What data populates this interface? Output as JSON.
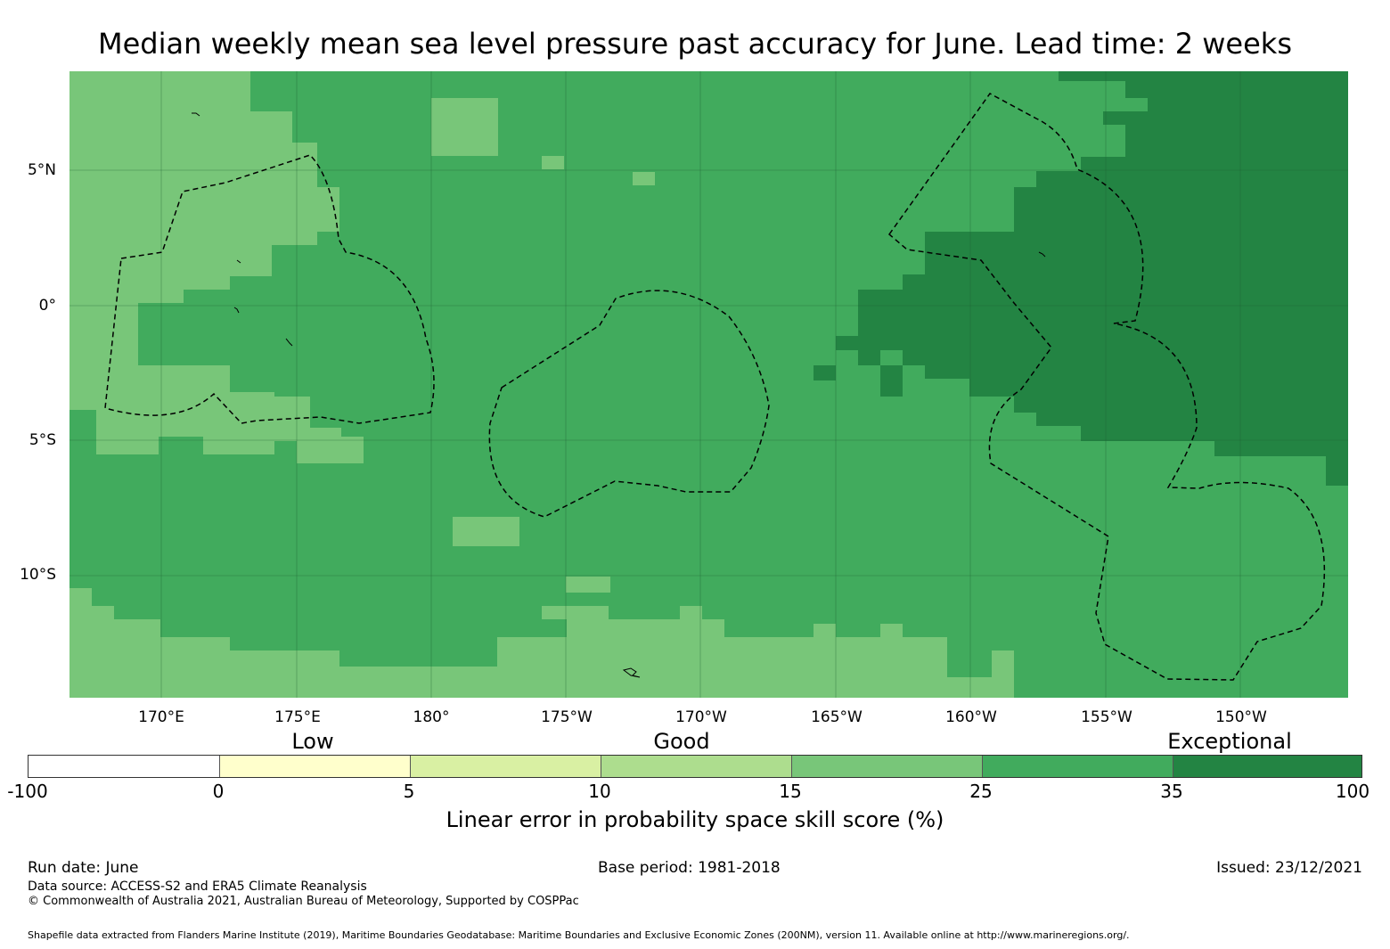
{
  "title": "Median weekly mean sea level pressure past accuracy for June. Lead time: 2 weeks",
  "map": {
    "lat_labels": [
      "5°N",
      "0°",
      "5°S",
      "10°S"
    ],
    "lon_labels": [
      "170°E",
      "175°E",
      "180°",
      "175°W",
      "170°W",
      "165°W",
      "160°W",
      "155°W",
      "150°W"
    ],
    "colors": {
      "band_15_25": "#78c679",
      "band_25_35": "#41ab5d",
      "band_35_100": "#238443",
      "grid_line": "#1f5f32",
      "boundary_line": "#000000"
    }
  },
  "legend": {
    "categories": [
      "Low",
      "Good",
      "Exceptional"
    ],
    "ticks": [
      "-100",
      "0",
      "5",
      "10",
      "15",
      "25",
      "35",
      "100"
    ],
    "segment_colors": [
      "#ffffff",
      "#ffffcc",
      "#d9f0a3",
      "#addd8e",
      "#78c679",
      "#41ab5d",
      "#238443"
    ],
    "title": "Linear error in probability space skill score (%)"
  },
  "footer": {
    "run_date": "Run date: June",
    "base_period": "Base period: 1981-2018",
    "issued": "Issued: 23/12/2021",
    "data_source": "Data source: ACCESS-S2 and ERA5 Climate Reanalysis",
    "copyright": "© Commonwealth of Australia 2021, Australian Bureau of Meteorology, Supported by COSPPac",
    "shapefile": "Shapefile data extracted from Flanders Marine Institute (2019), Maritime Boundaries Geodatabase: Maritime Boundaries and Exclusive Economic Zones (200NM), version 11. Available online at http://www.marineregions.org/."
  }
}
